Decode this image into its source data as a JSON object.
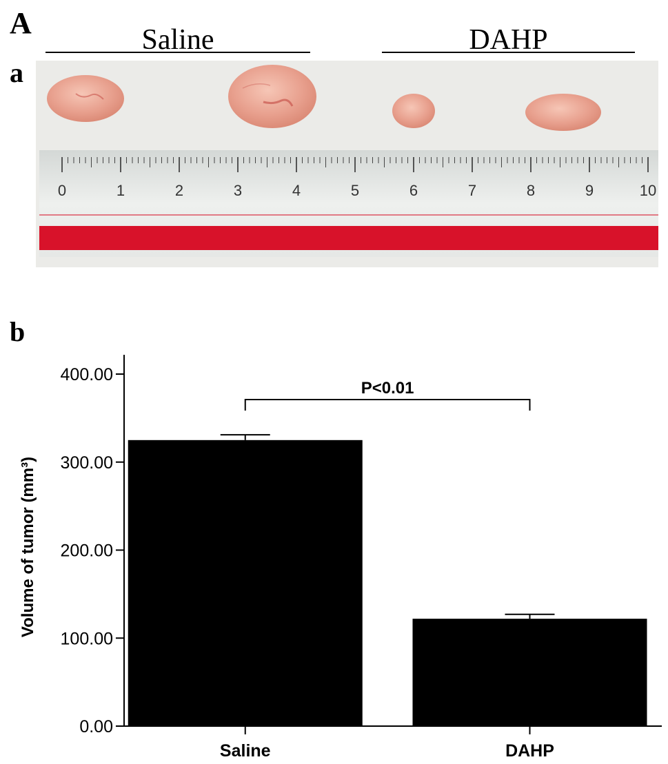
{
  "figure": {
    "panel_label": "A",
    "subpanel_a_label": "a",
    "subpanel_b_label": "b",
    "group_headers": [
      "Saline",
      "DAHP"
    ]
  },
  "photo": {
    "ruler_numbers": [
      "0",
      "1",
      "2",
      "3",
      "4",
      "5",
      "6",
      "7",
      "8",
      "9",
      "10"
    ],
    "colors": {
      "background": "#ebebe8",
      "tumor": "#e8a08e",
      "tumor_dark": "#c9574f",
      "ruler_band": "#d8122a"
    }
  },
  "chart_data": {
    "type": "bar",
    "categories": [
      "Saline",
      "DAHP"
    ],
    "values": [
      325,
      122
    ],
    "error": [
      6,
      5
    ],
    "ylabel": "Volume of tumor (mm³)",
    "xlabel": "",
    "ylim": [
      0,
      400
    ],
    "yticks": [
      "0.00",
      "100.00",
      "200.00",
      "300.00",
      "400.00"
    ],
    "significance": {
      "label": "P<0.01",
      "between": [
        "Saline",
        "DAHP"
      ]
    },
    "bar_color": "#000000",
    "grid": false
  }
}
